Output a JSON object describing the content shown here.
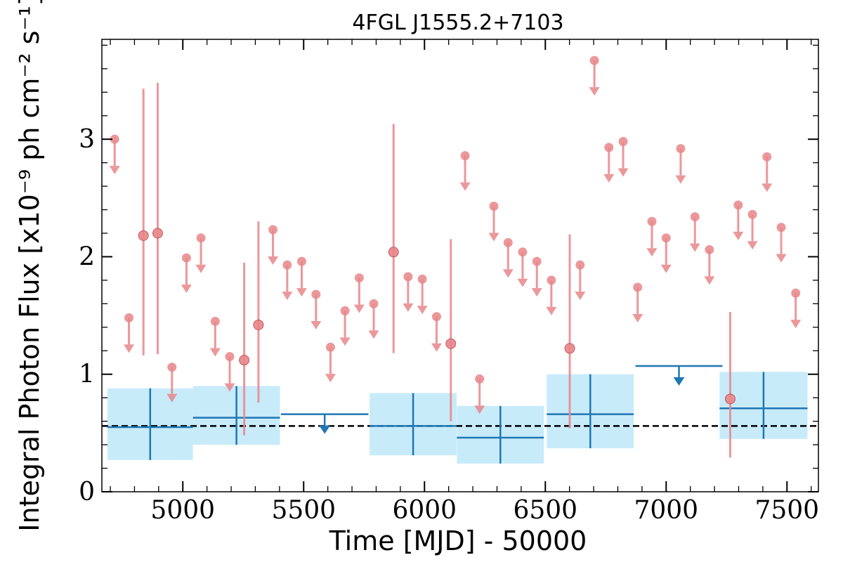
{
  "chart_data": {
    "type": "scatter",
    "title": "4FGL J1555.2+7103",
    "xlabel": "Time [MJD] - 50000",
    "ylabel": "Integral Photon Flux [x10⁻⁹ ph cm⁻² s⁻¹]",
    "xlim": [
      4665,
      7630
    ],
    "ylim": [
      0,
      3.85
    ],
    "x_ticks": [
      5000,
      5500,
      6000,
      6500,
      7000,
      7500
    ],
    "y_ticks": [
      0,
      1,
      2,
      3
    ],
    "x_tick_labels": [
      "5000",
      "5500",
      "6000",
      "6500",
      "7000",
      "7500"
    ],
    "y_tick_labels": [
      "0",
      "1",
      "2",
      "3"
    ],
    "grid": false,
    "reference_line": {
      "y": 0.56,
      "style": "dashed",
      "color": "#000000"
    },
    "colors": {
      "short_bins": "#e8868a",
      "long_bins": "#1f77b4",
      "long_bin_band": "#c8ebfa"
    },
    "series": [
      {
        "bin": "short",
        "detections": [
          {
            "x": 4837,
            "y": 2.18,
            "lo": 1.16,
            "hi": 3.43
          },
          {
            "x": 4896,
            "y": 2.2,
            "lo": 1.17,
            "hi": 3.48
          },
          {
            "x": 5254,
            "y": 1.12,
            "lo": 0.48,
            "hi": 1.95
          },
          {
            "x": 5313,
            "y": 1.42,
            "lo": 0.76,
            "hi": 2.3
          },
          {
            "x": 5872,
            "y": 2.04,
            "lo": 1.18,
            "hi": 3.13
          },
          {
            "x": 6109,
            "y": 1.26,
            "lo": 0.6,
            "hi": 2.15
          },
          {
            "x": 6601,
            "y": 1.22,
            "lo": 0.54,
            "hi": 2.19
          },
          {
            "x": 7265,
            "y": 0.79,
            "lo": 0.29,
            "hi": 1.53
          }
        ],
        "upper_limits": [
          {
            "x": 4718,
            "y": 3.0
          },
          {
            "x": 4777,
            "y": 1.48
          },
          {
            "x": 4955,
            "y": 1.06
          },
          {
            "x": 5015,
            "y": 1.99
          },
          {
            "x": 5075,
            "y": 2.16
          },
          {
            "x": 5134,
            "y": 1.45
          },
          {
            "x": 5194,
            "y": 1.15
          },
          {
            "x": 5373,
            "y": 2.23
          },
          {
            "x": 5432,
            "y": 1.93
          },
          {
            "x": 5492,
            "y": 1.96
          },
          {
            "x": 5551,
            "y": 1.68
          },
          {
            "x": 5611,
            "y": 1.23
          },
          {
            "x": 5671,
            "y": 1.54
          },
          {
            "x": 5730,
            "y": 1.82
          },
          {
            "x": 5790,
            "y": 1.6
          },
          {
            "x": 5932,
            "y": 1.83
          },
          {
            "x": 5991,
            "y": 1.81
          },
          {
            "x": 6050,
            "y": 1.49
          },
          {
            "x": 6168,
            "y": 2.86
          },
          {
            "x": 6228,
            "y": 0.96
          },
          {
            "x": 6287,
            "y": 2.43
          },
          {
            "x": 6346,
            "y": 2.12
          },
          {
            "x": 6406,
            "y": 2.04
          },
          {
            "x": 6465,
            "y": 1.96
          },
          {
            "x": 6525,
            "y": 1.8
          },
          {
            "x": 6644,
            "y": 1.93
          },
          {
            "x": 6703,
            "y": 3.67
          },
          {
            "x": 6763,
            "y": 2.93
          },
          {
            "x": 6822,
            "y": 2.98
          },
          {
            "x": 6882,
            "y": 1.74
          },
          {
            "x": 6941,
            "y": 2.3
          },
          {
            "x": 7000,
            "y": 2.16
          },
          {
            "x": 7060,
            "y": 2.92
          },
          {
            "x": 7119,
            "y": 2.34
          },
          {
            "x": 7179,
            "y": 2.06
          },
          {
            "x": 7298,
            "y": 2.44
          },
          {
            "x": 7357,
            "y": 2.36
          },
          {
            "x": 7417,
            "y": 2.85
          },
          {
            "x": 7476,
            "y": 2.25
          },
          {
            "x": 7536,
            "y": 1.69
          }
        ]
      },
      {
        "bin": "long",
        "detections": [
          {
            "x": 4865,
            "xerr": 177,
            "y": 0.55,
            "lo": 0.27,
            "hi": 0.88
          },
          {
            "x": 5222,
            "xerr": 180,
            "y": 0.63,
            "lo": 0.4,
            "hi": 0.9
          },
          {
            "x": 5953,
            "xerr": 180,
            "y": 0.56,
            "lo": 0.31,
            "hi": 0.84
          },
          {
            "x": 6314,
            "xerr": 180,
            "y": 0.46,
            "lo": 0.24,
            "hi": 0.73
          },
          {
            "x": 6686,
            "xerr": 180,
            "y": 0.66,
            "lo": 0.37,
            "hi": 1.0
          },
          {
            "x": 7403,
            "xerr": 182,
            "y": 0.71,
            "lo": 0.45,
            "hi": 1.02
          }
        ],
        "upper_limits": [
          {
            "x": 5587,
            "xerr": 181,
            "y": 0.66
          },
          {
            "x": 7053,
            "xerr": 180,
            "y": 1.07
          }
        ]
      }
    ]
  }
}
